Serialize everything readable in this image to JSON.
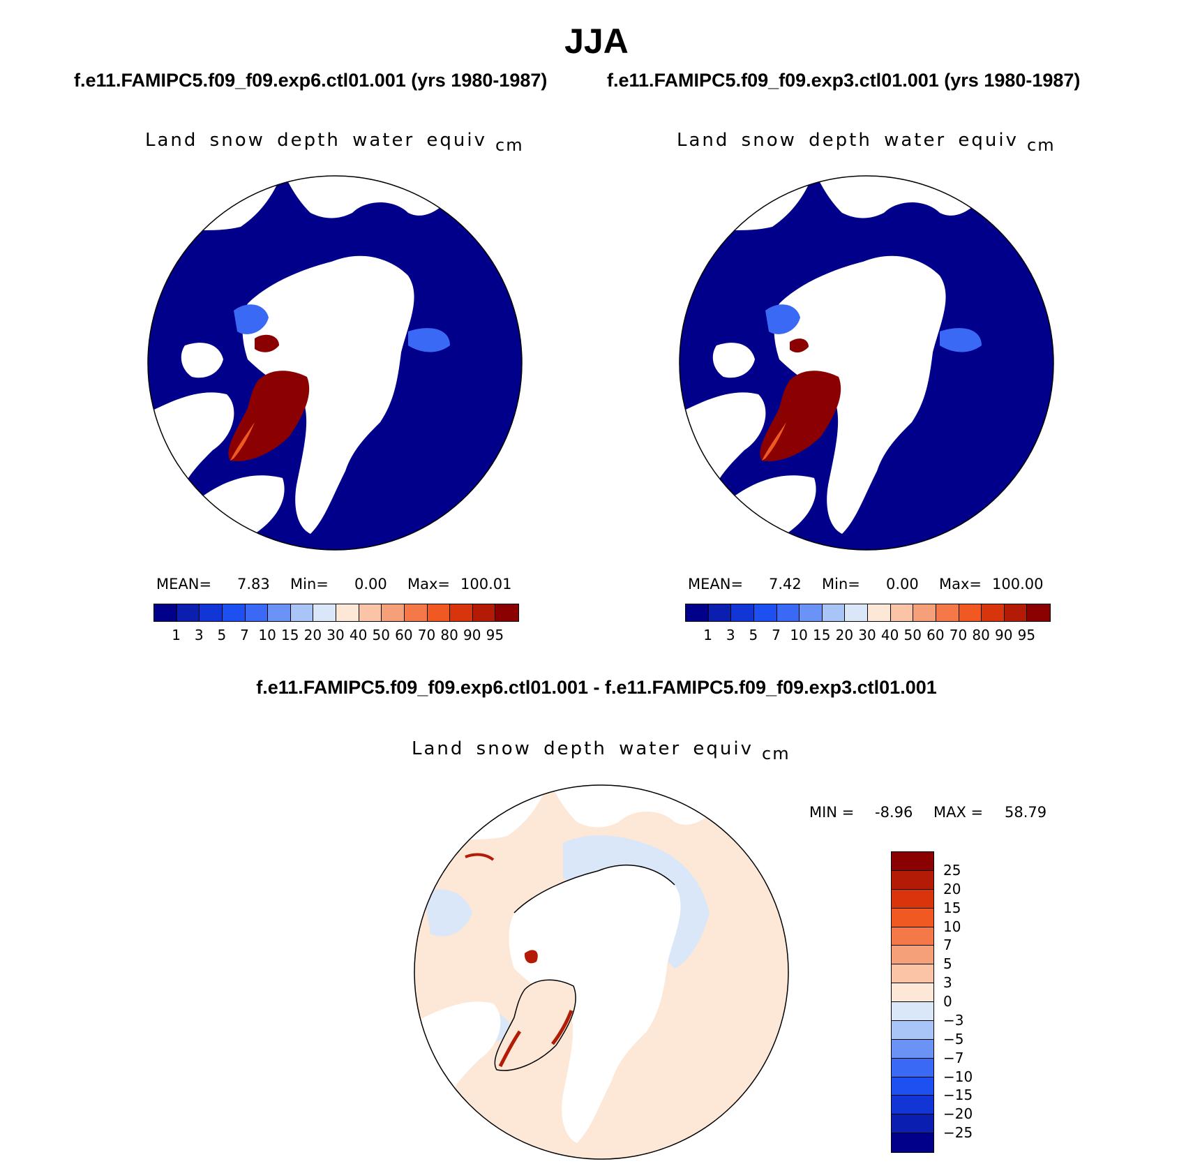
{
  "season": "JJA",
  "panels": [
    {
      "run_title": "f.e11.FAMIPC5.f09_f09.exp6.ctl01.001 (yrs 1980-1987)",
      "variable": "Land snow depth water equiv",
      "units": "cm",
      "mean_label": "MEAN=",
      "mean_value": "7.83",
      "min_label": "Min=",
      "min_value": "0.00",
      "max_label": "Max=",
      "max_value": "100.01"
    },
    {
      "run_title": "f.e11.FAMIPC5.f09_f09.exp3.ctl01.001 (yrs 1980-1987)",
      "variable": "Land snow depth water equiv",
      "units": "cm",
      "mean_label": "MEAN=",
      "mean_value": "7.42",
      "min_label": "Min=",
      "min_value": "0.00",
      "max_label": "Max=",
      "max_value": "100.00"
    }
  ],
  "abs_colorbar": {
    "levels": [
      "1",
      "3",
      "5",
      "7",
      "10",
      "15",
      "20",
      "30",
      "40",
      "50",
      "60",
      "70",
      "80",
      "90",
      "95"
    ],
    "colors": [
      "#00008b",
      "#0a1fb0",
      "#1236d6",
      "#1e4ff0",
      "#3a6af5",
      "#6b93f5",
      "#a9c4f7",
      "#d9e7f8",
      "#fde7d6",
      "#fbc4a6",
      "#f6a07a",
      "#f47848",
      "#f05a22",
      "#d9350d",
      "#b31b06",
      "#8b0000"
    ]
  },
  "difference": {
    "title": "f.e11.FAMIPC5.f09_f09.exp6.ctl01.001 - f.e11.FAMIPC5.f09_f09.exp3.ctl01.001",
    "variable": "Land snow depth water equiv",
    "units": "cm",
    "min_label": "MIN =",
    "min_value": "-8.96",
    "max_label": "MAX =",
    "max_value": "58.79",
    "levels": [
      "25",
      "20",
      "15",
      "10",
      "7",
      "5",
      "3",
      "0",
      "−3",
      "−5",
      "−7",
      "−10",
      "−15",
      "−20",
      "−25"
    ],
    "colors": [
      "#8b0000",
      "#b31b06",
      "#d9350d",
      "#f05a22",
      "#f47848",
      "#f6a07a",
      "#fbc4a6",
      "#fde7d6",
      "#d9e7f8",
      "#a9c4f7",
      "#6b93f5",
      "#3a6af5",
      "#1e4ff0",
      "#1236d6",
      "#0a1fb0",
      "#00008b"
    ]
  },
  "map_colors": {
    "ocean": "#ffffff",
    "abs_land": "#00008b",
    "abs_mid": "#3a6af5",
    "abs_greenland": "#8b0000",
    "abs_greenland_edge": "#f05a22",
    "diff_land": "#fde7d6",
    "diff_neg": "#d9e7f8",
    "diff_pos": "#b31b06",
    "coast": "#000000"
  }
}
